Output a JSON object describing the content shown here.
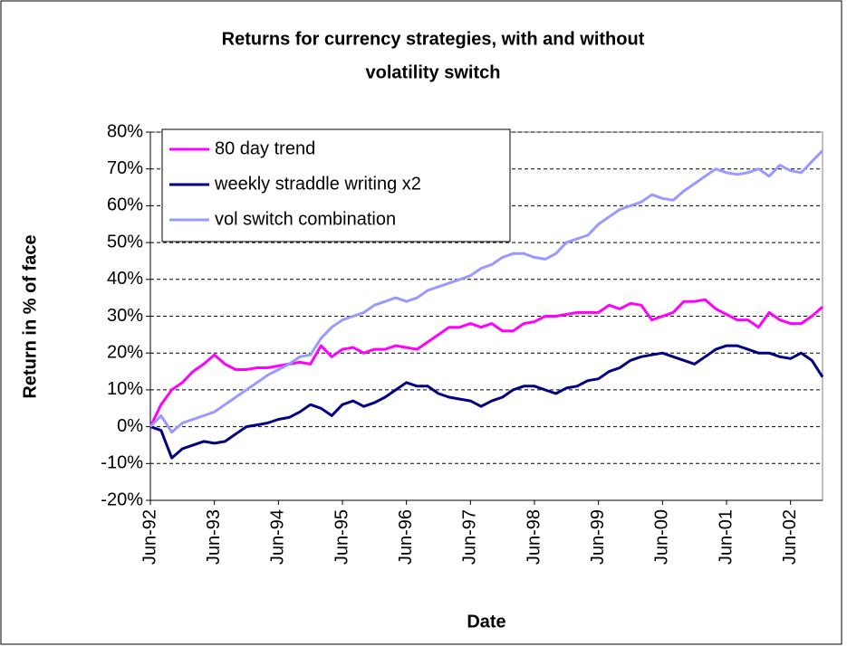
{
  "chart_data": {
    "type": "line",
    "title": "Returns for currency strategies, with and without",
    "title_line2": "volatility switch",
    "y_label": "Return in % of face",
    "x_label": "Date",
    "x": [
      "Jun-92",
      "Aug-92",
      "Oct-92",
      "Dec-92",
      "Feb-93",
      "Apr-93",
      "Jun-93",
      "Aug-93",
      "Oct-93",
      "Dec-93",
      "Feb-94",
      "Apr-94",
      "Jun-94",
      "Aug-94",
      "Oct-94",
      "Dec-94",
      "Feb-95",
      "Apr-95",
      "Jun-95",
      "Aug-95",
      "Oct-95",
      "Dec-95",
      "Feb-96",
      "Apr-96",
      "Jun-96",
      "Aug-96",
      "Oct-96",
      "Dec-96",
      "Feb-97",
      "Apr-97",
      "Jun-97",
      "Aug-97",
      "Oct-97",
      "Dec-97",
      "Feb-98",
      "Apr-98",
      "Jun-98",
      "Aug-98",
      "Oct-98",
      "Dec-98",
      "Feb-99",
      "Apr-99",
      "Jun-99",
      "Aug-99",
      "Oct-99",
      "Dec-99",
      "Feb-00",
      "Apr-00",
      "Jun-00",
      "Aug-00",
      "Oct-00",
      "Dec-00",
      "Feb-01",
      "Apr-01",
      "Jun-01",
      "Aug-01",
      "Oct-01",
      "Dec-01",
      "Feb-02",
      "Apr-02",
      "Jun-02",
      "Aug-02",
      "Oct-02",
      "Dec-02"
    ],
    "series": [
      {
        "name": "80 day trend",
        "color": "#ff00ff",
        "values": [
          0,
          6,
          10,
          12,
          15,
          17,
          19.5,
          17,
          15.5,
          15.5,
          16,
          16,
          16.5,
          17,
          17.5,
          17,
          22,
          19,
          21,
          21.5,
          20,
          21,
          21,
          22,
          21.5,
          21,
          23,
          25,
          27,
          27,
          28,
          27,
          28,
          26,
          26,
          28,
          28.5,
          30,
          30,
          30.5,
          31,
          31,
          31,
          33,
          32,
          33.5,
          33,
          29,
          30,
          31,
          34,
          34,
          34.5,
          32,
          30.5,
          29,
          29,
          27,
          31,
          29,
          28,
          28,
          30,
          32.5
        ]
      },
      {
        "name": "weekly straddle writing x2",
        "color": "#000080",
        "values": [
          0,
          -1,
          -8.5,
          -6,
          -5,
          -4,
          -4.5,
          -4,
          -2,
          0,
          0.5,
          1,
          2,
          2.5,
          4,
          6,
          5,
          3,
          6,
          7,
          5.5,
          6.5,
          8,
          10,
          12,
          11,
          11,
          9,
          8,
          7.5,
          7,
          5.5,
          7,
          8,
          10,
          11,
          11,
          10,
          9,
          10.5,
          11,
          12.5,
          13,
          15,
          16,
          18,
          19,
          19.5,
          20,
          19,
          18,
          17,
          19,
          21,
          22,
          22,
          21,
          20,
          20,
          19,
          18.5,
          20,
          18,
          13.5
        ]
      },
      {
        "name": "vol switch combination",
        "color": "#9999ff",
        "values": [
          0,
          3,
          -1.5,
          1,
          2,
          3,
          4,
          6,
          8,
          10,
          12,
          14,
          15.5,
          17,
          19,
          19.5,
          24,
          27,
          29,
          30,
          31,
          33,
          34,
          35,
          34,
          35,
          37,
          38,
          39,
          40,
          41,
          43,
          44,
          46,
          47,
          47,
          46,
          45.5,
          47,
          50,
          51,
          52,
          55,
          57,
          59,
          60,
          61,
          63,
          62,
          61.5,
          64,
          66,
          68,
          70,
          69,
          68.5,
          69,
          70,
          68,
          71,
          69.5,
          69,
          72,
          75
        ]
      }
    ],
    "xlim": [
      "Jun-92",
      "Dec-02"
    ],
    "xticks": [
      "Jun-92",
      "Jun-93",
      "Jun-94",
      "Jun-95",
      "Jun-96",
      "Jun-97",
      "Jun-98",
      "Jun-99",
      "Jun-00",
      "Jun-01",
      "Jun-02"
    ],
    "ylim": [
      -20,
      80
    ],
    "yticks": [
      {
        "value": -20,
        "label": "-20%"
      },
      {
        "value": -10,
        "label": "-10%"
      },
      {
        "value": 0,
        "label": "0%"
      },
      {
        "value": 10,
        "label": "10%"
      },
      {
        "value": 20,
        "label": "20%"
      },
      {
        "value": 30,
        "label": "30%"
      },
      {
        "value": 40,
        "label": "40%"
      },
      {
        "value": 50,
        "label": "50%"
      },
      {
        "value": 60,
        "label": "60%"
      },
      {
        "value": 70,
        "label": "70%"
      },
      {
        "value": 80,
        "label": "80%"
      }
    ],
    "grid": true,
    "legend": "top-left"
  }
}
